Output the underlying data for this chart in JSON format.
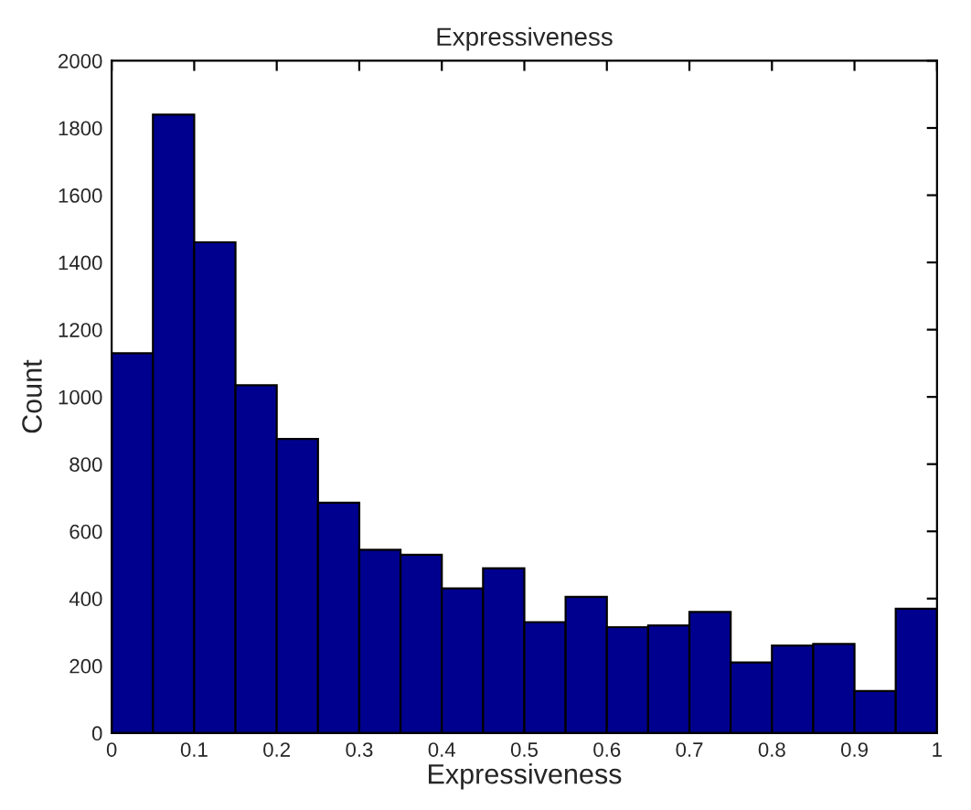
{
  "chart_data": {
    "type": "histogram",
    "title": "Expressiveness",
    "xlabel": "Expressiveness",
    "ylabel": "Count",
    "bins": [
      0,
      0.05,
      0.1,
      0.15,
      0.2,
      0.25,
      0.3,
      0.35,
      0.4,
      0.45,
      0.5,
      0.55,
      0.6,
      0.65,
      0.7,
      0.75,
      0.8,
      0.85,
      0.9,
      0.95,
      1
    ],
    "values": [
      1130,
      1840,
      1460,
      1035,
      875,
      685,
      545,
      530,
      430,
      490,
      330,
      405,
      315,
      320,
      360,
      210,
      260,
      265,
      125,
      370
    ],
    "color": "#00008f",
    "xlim": [
      0,
      1
    ],
    "xticks": [
      0,
      0.1,
      0.2,
      0.3,
      0.4,
      0.5,
      0.6,
      0.7,
      0.8,
      0.9,
      1
    ],
    "ylim": [
      0,
      2000
    ],
    "yticks": [
      0,
      200,
      400,
      600,
      800,
      1000,
      1200,
      1400,
      1600,
      1800,
      2000
    ],
    "grid": false
  }
}
